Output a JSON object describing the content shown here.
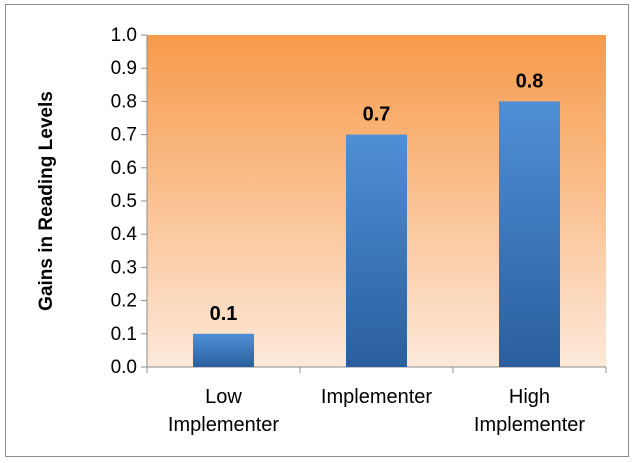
{
  "chart_data": {
    "type": "bar",
    "categories": [
      [
        "Low",
        "Implementer"
      ],
      [
        "Implementer"
      ],
      [
        "High",
        "Implementer"
      ]
    ],
    "values": [
      0.1,
      0.7,
      0.8
    ],
    "data_labels": [
      "0.1",
      "0.7",
      "0.8"
    ],
    "ylabel": "Gains in Reading Levels",
    "xlabel": "",
    "ylim": [
      0.0,
      1.0
    ],
    "yticks": [
      "0.0",
      "0.1",
      "0.2",
      "0.3",
      "0.4",
      "0.5",
      "0.6",
      "0.7",
      "0.8",
      "0.9",
      "1.0"
    ],
    "grid": false,
    "legend": "none",
    "colors": {
      "bar_top": "#4f8fd6",
      "bar_bottom": "#2a5f9e",
      "plot_top": "#f79a4a",
      "plot_bottom": "#fde9da"
    }
  }
}
